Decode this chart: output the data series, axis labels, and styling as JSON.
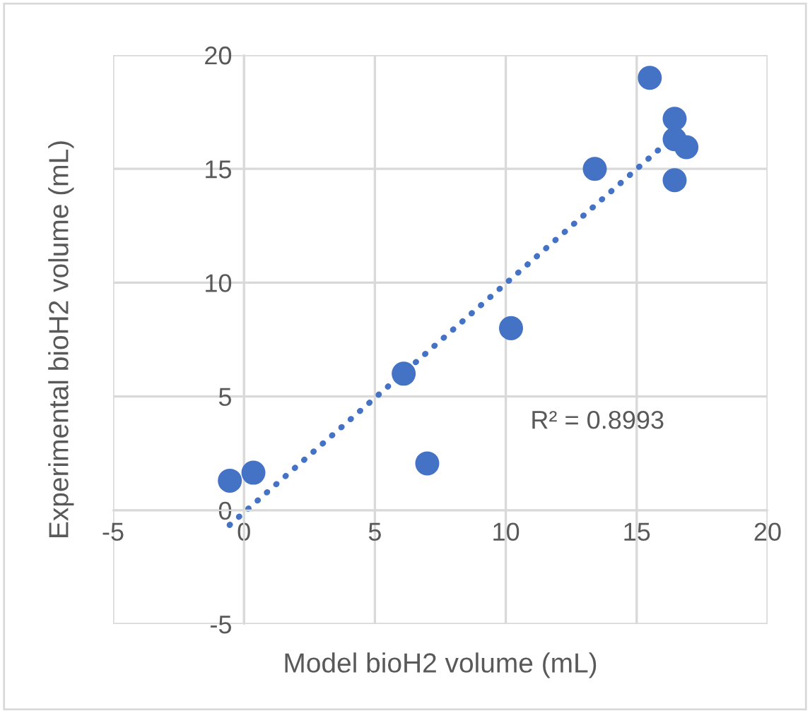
{
  "chart_data": {
    "type": "scatter",
    "xlabel": "Model bioH2 volume (mL)",
    "ylabel": "Experimental bioH2 volume (mL)",
    "xlim": [
      -5,
      20
    ],
    "ylim": [
      -5,
      20
    ],
    "xticks": [
      -5,
      0,
      5,
      10,
      15,
      20
    ],
    "yticks": [
      -5,
      0,
      5,
      10,
      15,
      20
    ],
    "grid": true,
    "series": [
      {
        "marker": "circle",
        "color": "#4472c4",
        "x": [
          -0.54,
          0.36,
          6.1,
          7.0,
          10.2,
          13.4,
          15.5,
          16.45,
          16.45,
          16.9,
          16.45
        ],
        "values": [
          1.3,
          1.65,
          6.0,
          2.06,
          8.0,
          15.0,
          19.0,
          17.2,
          16.3,
          15.95,
          14.5
        ]
      },
      {
        "type": "line",
        "color": "#4472c4",
        "line_style": "dotted",
        "x": [
          -0.55,
          16.0
        ],
        "values": [
          -0.65,
          16.0
        ]
      }
    ],
    "annotations": [
      "R² = 0.8993"
    ]
  }
}
